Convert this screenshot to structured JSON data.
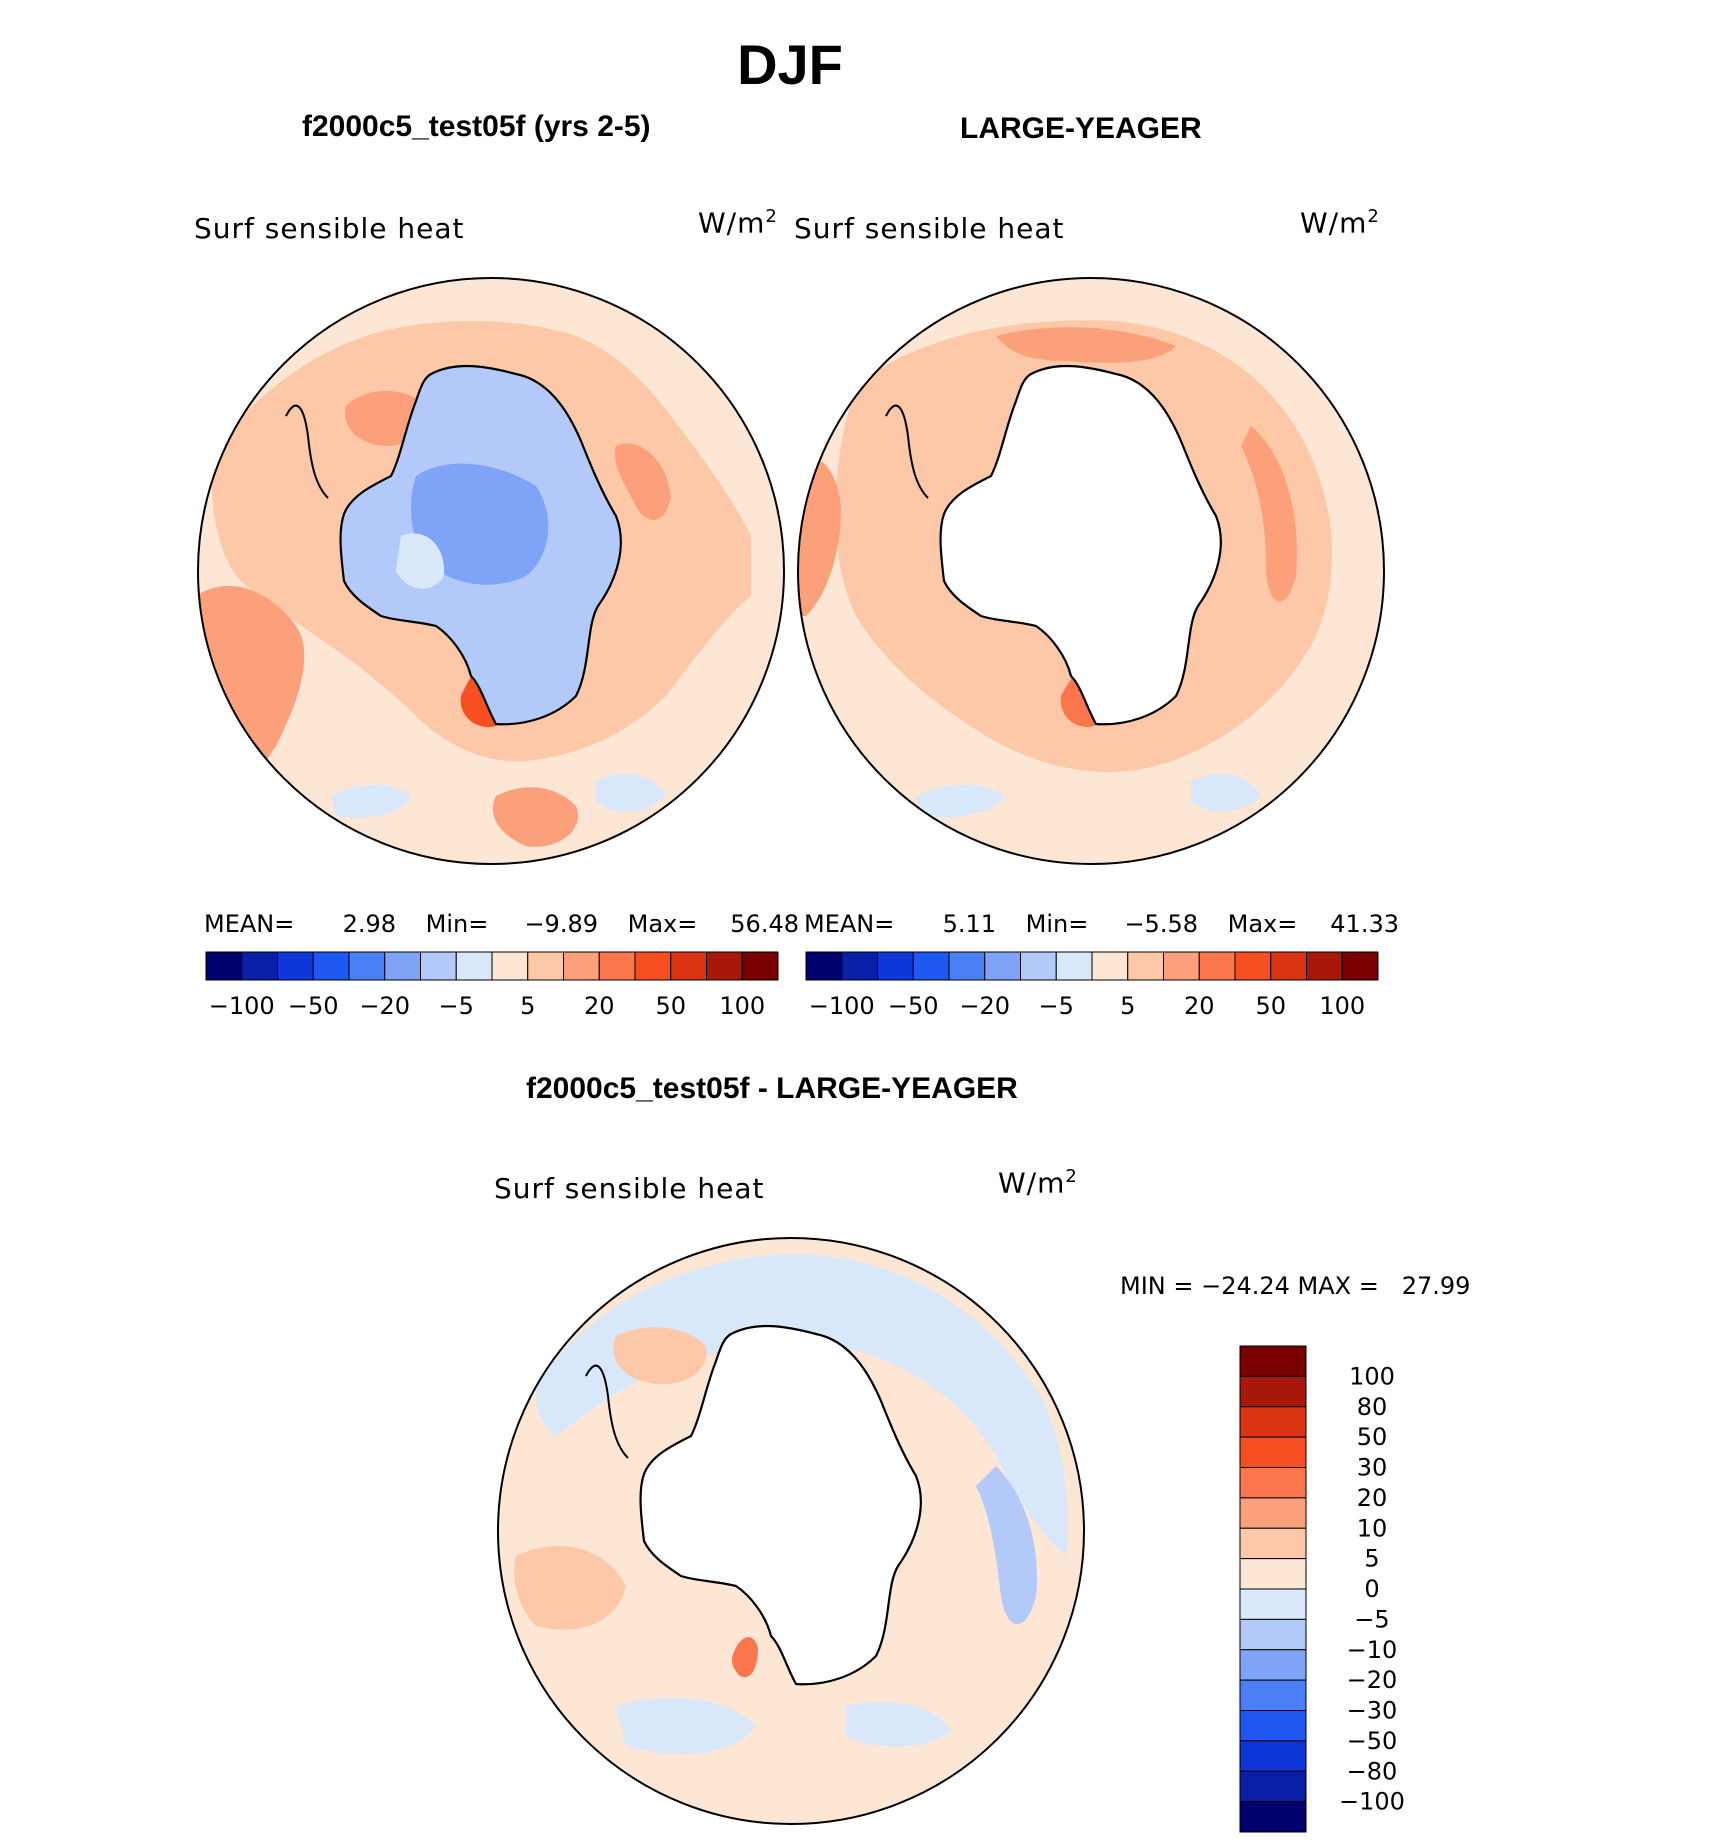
{
  "page": {
    "title": "DJF"
  },
  "panels": [
    {
      "title": "f2000c5_test05f (yrs 2-5)",
      "field": "Surf sensible heat",
      "units": "W/m",
      "units_sup": "2",
      "stats": {
        "mean_label": "MEAN=",
        "mean": "2.98",
        "min_label": "Min=",
        "min": "−9.89",
        "max_label": "Max=",
        "max": "56.48"
      }
    },
    {
      "title": "LARGE-YEAGER",
      "field": "Surf sensible heat",
      "units": "W/m",
      "units_sup": "2",
      "stats": {
        "mean_label": "MEAN=",
        "mean": "5.11",
        "min_label": "Min=",
        "min": "−5.58",
        "max_label": "Max=",
        "max": "41.33"
      }
    },
    {
      "title": "f2000c5_test05f - LARGE-YEAGER",
      "field": "Surf sensible heat",
      "units": "W/m",
      "units_sup": "2",
      "stats_text": "MIN = −24.24 MAX =   27.99"
    }
  ],
  "colorbar_horizontal": {
    "colors": [
      "#00006e",
      "#0a1fa8",
      "#0e36d8",
      "#1f58f0",
      "#4a7ff5",
      "#7fa3f7",
      "#b3c9f9",
      "#d8e8fa",
      "#fde6d4",
      "#fdc8a8",
      "#fca07c",
      "#fb764c",
      "#f74e22",
      "#db3412",
      "#a8180a",
      "#7a0000"
    ],
    "tick_labels": [
      "−100",
      "−50",
      "−20",
      "−5",
      "5",
      "20",
      "50",
      "100"
    ]
  },
  "colorbar_vertical": {
    "colors": [
      "#7a0000",
      "#a8180a",
      "#db3412",
      "#f74e22",
      "#fb764c",
      "#fca07c",
      "#fdc8a8",
      "#fde6d4",
      "#d8e8fa",
      "#b3c9f9",
      "#7fa3f7",
      "#4a7ff5",
      "#1f58f0",
      "#0e36d8",
      "#0a1fa8",
      "#00006e"
    ],
    "tick_labels": [
      "100",
      "80",
      "50",
      "30",
      "20",
      "10",
      "5",
      "0",
      "−5",
      "−10",
      "−20",
      "−30",
      "−50",
      "−80",
      "−100"
    ]
  },
  "chart_data": [
    {
      "type": "heatmap",
      "projection": "south-polar-stereographic",
      "title": "f2000c5_test05f (yrs 2-5)",
      "variable": "Surf sensible heat",
      "units": "W/m2",
      "mean": 2.98,
      "min": -9.89,
      "max": 56.48,
      "contour_levels": [
        -100,
        -80,
        -50,
        -30,
        -20,
        -10,
        -5,
        0,
        5,
        10,
        20,
        30,
        50,
        80,
        100
      ]
    },
    {
      "type": "heatmap",
      "projection": "south-polar-stereographic",
      "title": "LARGE-YEAGER",
      "variable": "Surf sensible heat",
      "units": "W/m2",
      "mean": 5.11,
      "min": -5.58,
      "max": 41.33,
      "contour_levels": [
        -100,
        -80,
        -50,
        -30,
        -20,
        -10,
        -5,
        0,
        5,
        10,
        20,
        30,
        50,
        80,
        100
      ]
    },
    {
      "type": "heatmap",
      "projection": "south-polar-stereographic",
      "title": "f2000c5_test05f - LARGE-YEAGER",
      "variable": "Surf sensible heat",
      "units": "W/m2",
      "min": -24.24,
      "max": 27.99,
      "contour_levels": [
        -100,
        -80,
        -50,
        -30,
        -20,
        -10,
        -5,
        0,
        5,
        10,
        20,
        30,
        50,
        80,
        100
      ]
    }
  ]
}
